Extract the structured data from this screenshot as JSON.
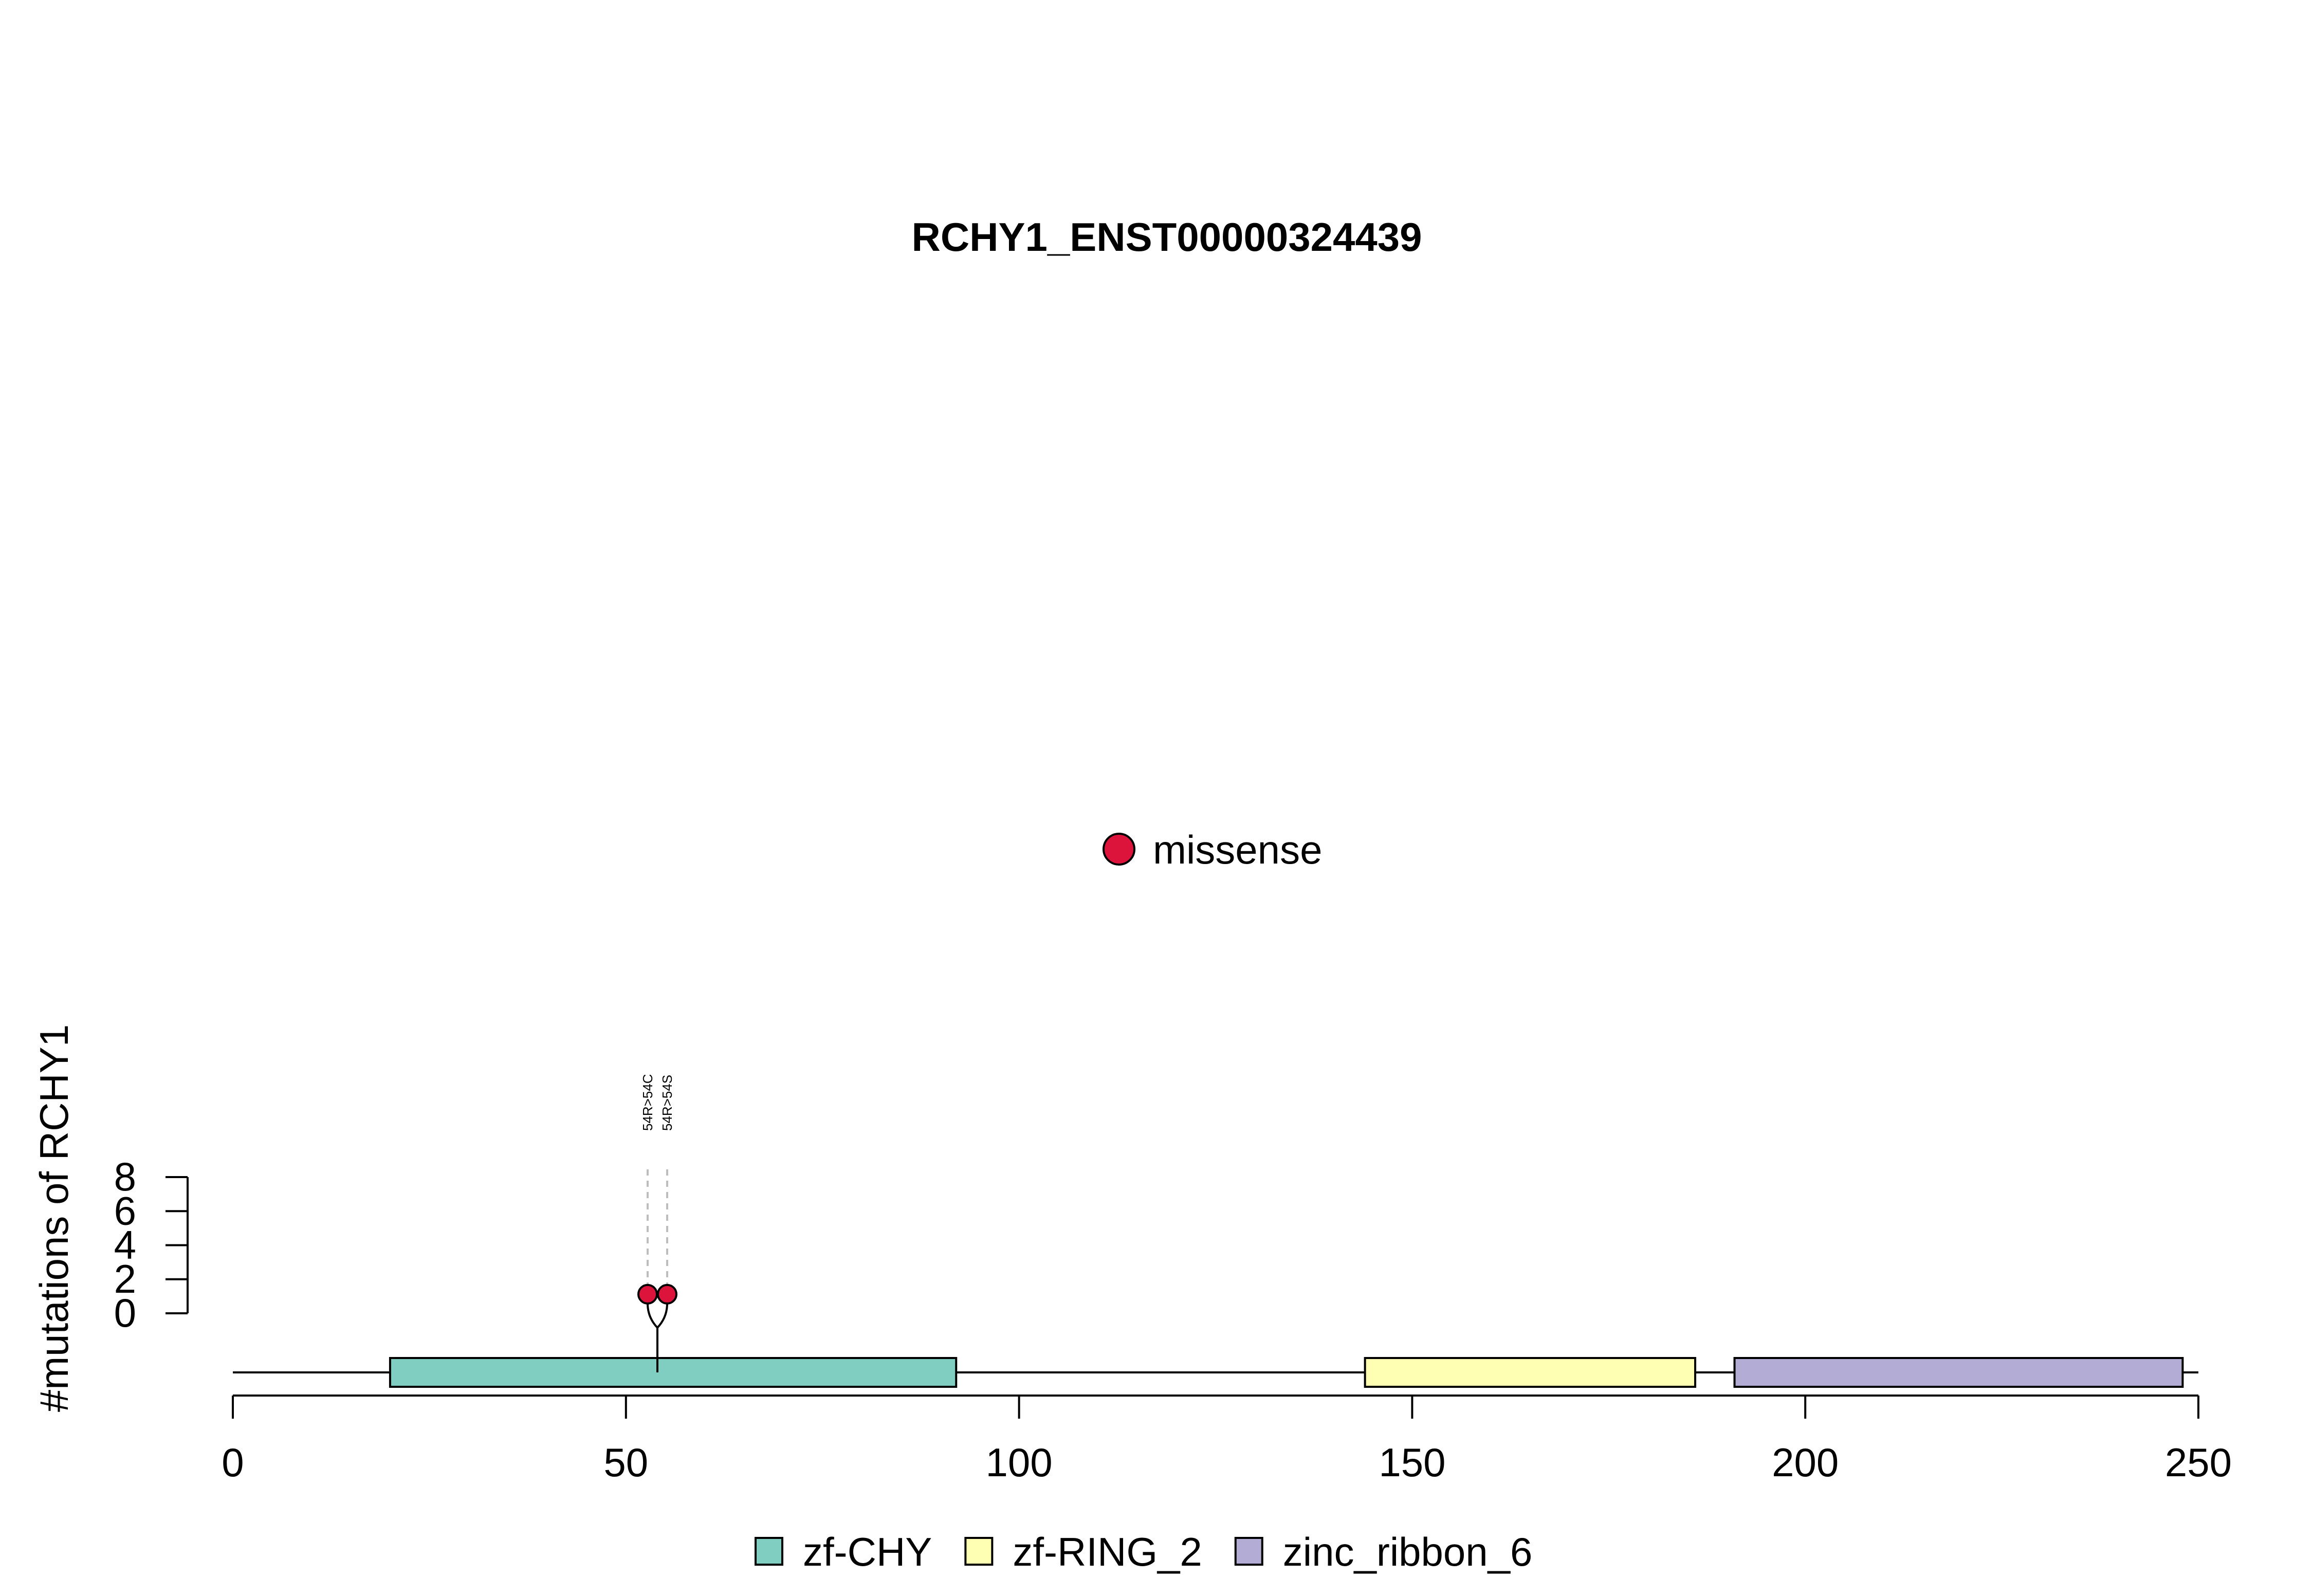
{
  "chart_data": {
    "type": "lollipop",
    "title": "RCHY1_ENST00000324439",
    "xlabel": "",
    "ylabel": "#mutations of RCHY1",
    "xlim": [
      0,
      250
    ],
    "x_ticks": [
      0,
      50,
      100,
      150,
      200,
      250
    ],
    "ylim": [
      0,
      8
    ],
    "y_ticks": [
      0,
      2,
      4,
      6,
      8
    ],
    "protein_length": 250,
    "domains": [
      {
        "name": "zf-CHY",
        "start": 20,
        "end": 92,
        "color": "#80CDC1"
      },
      {
        "name": "zf-RING_2",
        "start": 144,
        "end": 186,
        "color": "#FFFFB3"
      },
      {
        "name": "zinc_ribbon_6",
        "start": 191,
        "end": 248,
        "color": "#B3ACD4"
      }
    ],
    "mutations": [
      {
        "position": 54,
        "count": 1,
        "label": "54R>54C",
        "type": "missense"
      },
      {
        "position": 54,
        "count": 1,
        "label": "54R>54S",
        "type": "missense"
      }
    ],
    "mutation_legend": [
      {
        "type": "missense",
        "color": "#DC143C"
      }
    ],
    "domain_legend_placement": "bottom",
    "mutation_legend_placement": "center"
  }
}
